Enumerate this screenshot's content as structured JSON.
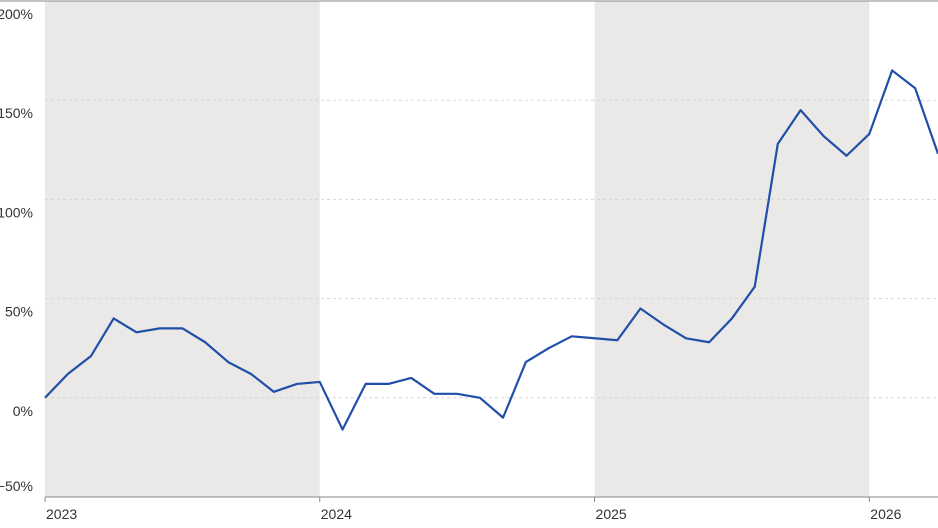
{
  "chart_data": {
    "type": "line",
    "x": [
      2023,
      2023.083,
      2023.167,
      2023.25,
      2023.333,
      2023.417,
      2023.5,
      2023.583,
      2023.667,
      2023.75,
      2023.833,
      2023.917,
      2024,
      2024.083,
      2024.167,
      2024.25,
      2024.333,
      2024.417,
      2024.5,
      2024.583,
      2024.667,
      2024.75,
      2024.833,
      2024.917,
      2025,
      2025.083,
      2025.167,
      2025.25,
      2025.333,
      2025.417,
      2025.5,
      2025.583,
      2025.667,
      2025.75,
      2025.833,
      2025.917,
      2026,
      2026.083,
      2026.167,
      2026.25
    ],
    "series": [
      {
        "color": "#1f4fa8",
        "values": [
          0,
          12,
          21,
          40,
          33,
          35,
          35,
          28,
          18,
          12,
          3,
          7,
          8,
          -16,
          7,
          7,
          10,
          2,
          2,
          0,
          -10,
          18,
          25,
          31,
          30,
          29,
          45,
          37,
          30,
          28,
          40,
          56,
          128,
          145,
          132,
          122,
          133,
          165,
          156,
          123
        ]
      }
    ],
    "xlim": [
      2023,
      2026.25
    ],
    "xticks": [
      2023,
      2024,
      2025,
      2026
    ],
    "ylim": [
      -50,
      200
    ],
    "yticks": [
      {
        "value": -50,
        "label": "−50%"
      },
      {
        "value": 0,
        "label": "0%"
      },
      {
        "value": 50,
        "label": "50%"
      },
      {
        "value": 100,
        "label": "100%"
      },
      {
        "value": 150,
        "label": "150%"
      },
      {
        "value": 200,
        "label": "200%"
      }
    ],
    "shaded_spans": [
      [
        2023,
        2024
      ],
      [
        2025,
        2026
      ]
    ],
    "shade_color": "#ebe9e8",
    "grid": true
  }
}
